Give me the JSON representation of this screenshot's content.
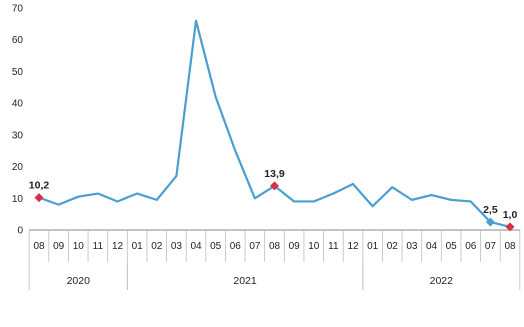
{
  "chart_data": {
    "type": "line",
    "title": "",
    "xlabel": "",
    "ylabel": "",
    "ylim": [
      0,
      70
    ],
    "yticks": [
      0,
      10,
      20,
      30,
      40,
      50,
      60,
      70
    ],
    "grid": false,
    "legend": "none",
    "categories": [
      "08",
      "09",
      "10",
      "11",
      "12",
      "01",
      "02",
      "03",
      "04",
      "05",
      "06",
      "07",
      "08",
      "09",
      "10",
      "11",
      "12",
      "01",
      "02",
      "03",
      "04",
      "05",
      "06",
      "07",
      "08"
    ],
    "years": [
      {
        "label": "2020",
        "from": 0,
        "to": 4
      },
      {
        "label": "2021",
        "from": 5,
        "to": 16
      },
      {
        "label": "2022",
        "from": 17,
        "to": 24
      }
    ],
    "series": [
      {
        "values": [
          10.2,
          8,
          10.5,
          11.5,
          9,
          11.5,
          9.5,
          17,
          66,
          42,
          25,
          10,
          13.9,
          9,
          9,
          11.5,
          14.5,
          7.5,
          13.5,
          9.5,
          11,
          9.5,
          9,
          2.5,
          1.0
        ],
        "color": "#4a9fd0"
      }
    ],
    "markers": [
      {
        "index": 0,
        "label": "10,2",
        "color": "#d6304a",
        "shape": "diamond"
      },
      {
        "index": 12,
        "label": "13,9",
        "color": "#d6304a",
        "shape": "diamond"
      },
      {
        "index": 23,
        "label": "2,5",
        "color": "#4a9fd0",
        "shape": "diamond"
      },
      {
        "index": 24,
        "label": "1,0",
        "color": "#d6304a",
        "shape": "diamond"
      }
    ],
    "axis_color": "#888888"
  }
}
